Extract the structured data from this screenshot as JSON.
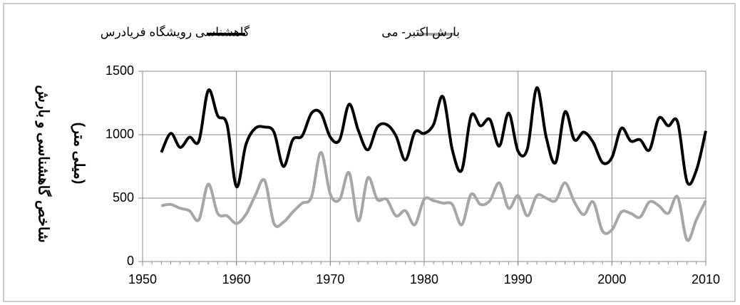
{
  "chart_data": {
    "type": "line",
    "ylabel": [
      "شاخص گاهشناسی و بارش",
      "(میلی متر)"
    ],
    "x": [
      1952,
      1953,
      1954,
      1955,
      1956,
      1957,
      1958,
      1959,
      1960,
      1961,
      1962,
      1963,
      1964,
      1965,
      1966,
      1967,
      1968,
      1969,
      1970,
      1971,
      1972,
      1973,
      1974,
      1975,
      1976,
      1977,
      1978,
      1979,
      1980,
      1981,
      1982,
      1983,
      1984,
      1985,
      1986,
      1987,
      1988,
      1989,
      1990,
      1991,
      1992,
      1993,
      1994,
      1995,
      1996,
      1997,
      1998,
      1999,
      2000,
      2001,
      2002,
      2003,
      2004,
      2005,
      2006,
      2007,
      2008,
      2009,
      2010
    ],
    "series": [
      {
        "name": "گاهشناسی رویشگاه فریادرس",
        "color": "#000000",
        "values": [
          860,
          1010,
          900,
          980,
          950,
          1350,
          1150,
          1080,
          590,
          920,
          1050,
          1060,
          1020,
          750,
          960,
          990,
          1170,
          1170,
          980,
          960,
          1240,
          1030,
          880,
          1060,
          1080,
          990,
          800,
          1020,
          1010,
          1080,
          1300,
          880,
          720,
          1150,
          1070,
          1120,
          910,
          1170,
          870,
          890,
          1370,
          980,
          780,
          1180,
          960,
          1020,
          940,
          780,
          820,
          1050,
          950,
          960,
          880,
          1130,
          1070,
          1100,
          630,
          720,
          1030
        ]
      },
      {
        "name": "بارش اکتبر- می",
        "color": "#a6a6a6",
        "values": [
          440,
          450,
          420,
          400,
          330,
          610,
          380,
          360,
          300,
          370,
          520,
          640,
          300,
          310,
          390,
          460,
          510,
          860,
          530,
          490,
          700,
          320,
          660,
          490,
          490,
          360,
          400,
          290,
          490,
          480,
          460,
          450,
          290,
          530,
          450,
          480,
          620,
          420,
          520,
          360,
          520,
          500,
          480,
          620,
          470,
          370,
          470,
          240,
          250,
          390,
          380,
          350,
          470,
          440,
          380,
          510,
          170,
          330,
          480
        ]
      }
    ],
    "xlim": [
      1950,
      2010
    ],
    "xticks": [
      1950,
      1960,
      1970,
      1980,
      1990,
      2000,
      2010
    ],
    "ylim": [
      0,
      1500
    ],
    "yticks": [
      0,
      500,
      1000,
      1500
    ],
    "grid": true
  }
}
